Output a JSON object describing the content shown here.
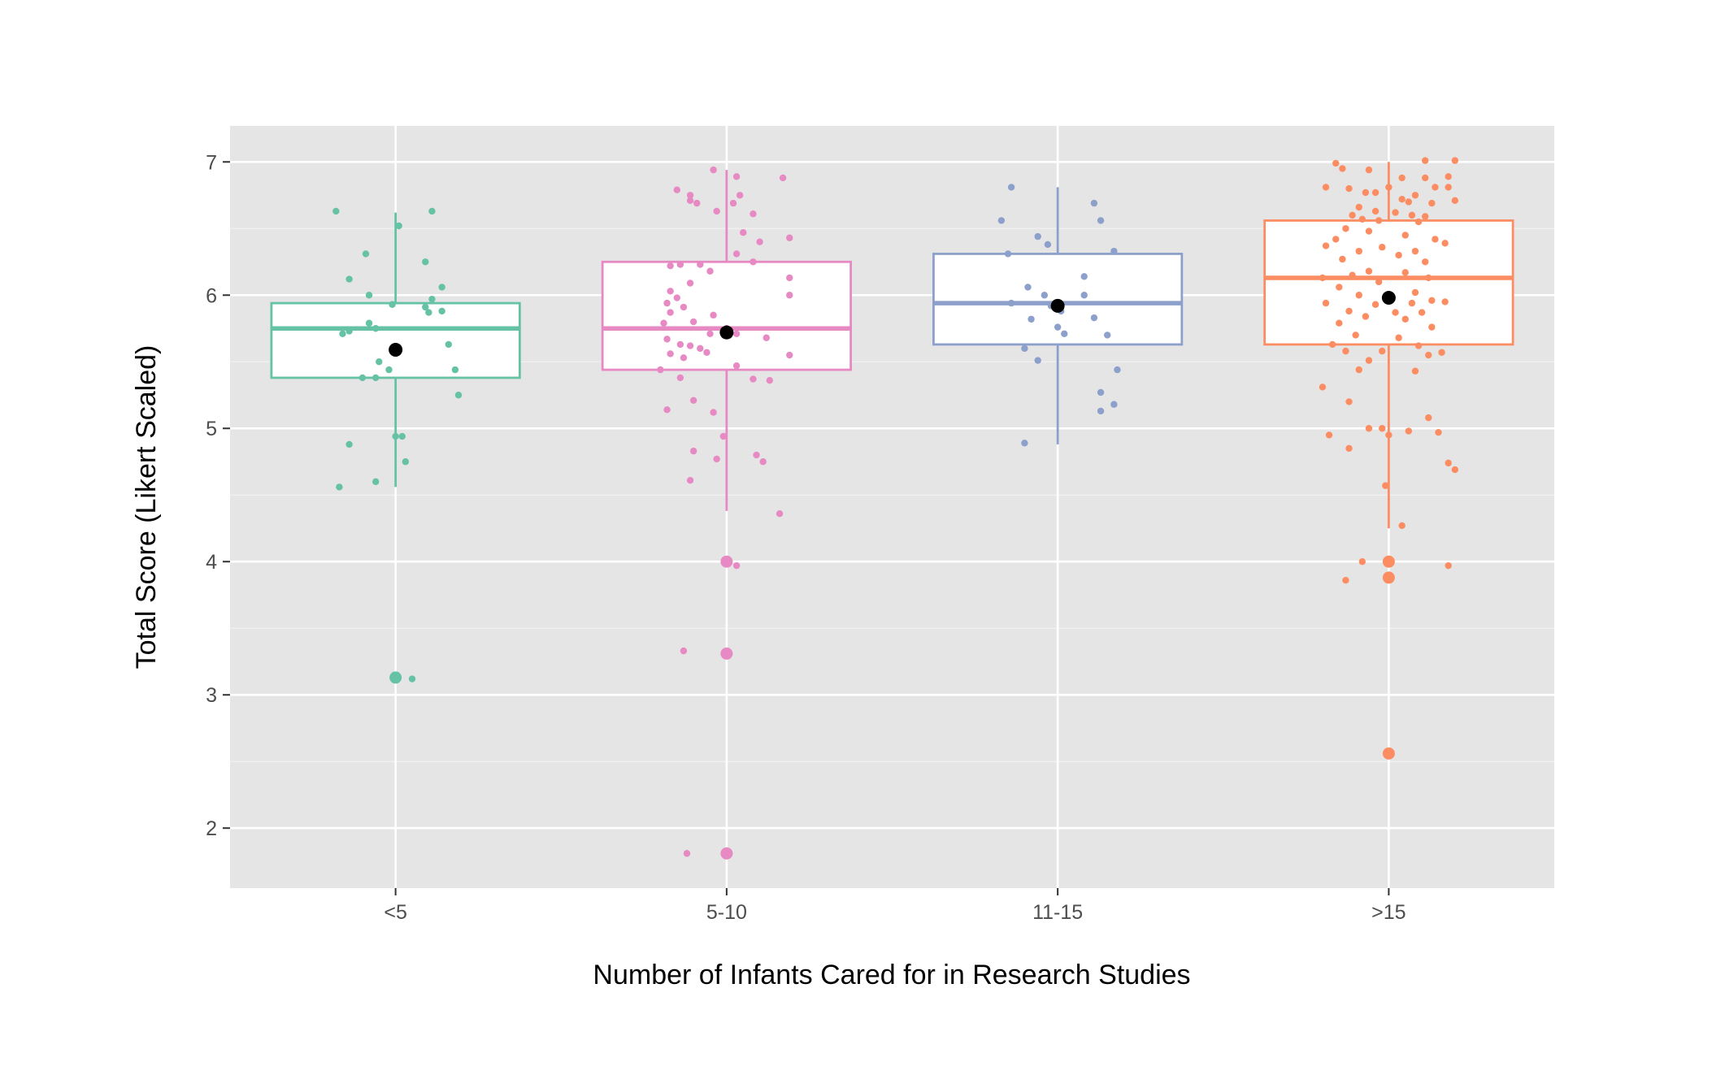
{
  "chart_data": {
    "type": "box",
    "title": "",
    "xlabel": "Number of Infants Cared for in Research Studies",
    "ylabel": "Total Score (Likert Scaled)",
    "ylim": [
      1.55,
      7.27
    ],
    "yticks": [
      2,
      3,
      4,
      5,
      6,
      7
    ],
    "grid": true,
    "legend": "none",
    "categories": [
      "<5",
      "5-10",
      "11-15",
      ">15"
    ],
    "colors": [
      "#66C2A5",
      "#E78AC3",
      "#8DA0CB",
      "#FC8D62"
    ],
    "background": "#E5E5E5",
    "boxes": [
      {
        "category": "<5",
        "q1": 5.38,
        "median": 5.75,
        "q3": 5.94,
        "whisker_low": 4.56,
        "whisker_high": 6.62,
        "mean": 5.59,
        "outliers": [
          3.13
        ]
      },
      {
        "category": "5-10",
        "q1": 5.44,
        "median": 5.75,
        "q3": 6.25,
        "whisker_low": 4.38,
        "whisker_high": 6.94,
        "mean": 5.72,
        "outliers": [
          4.0,
          3.31,
          1.81
        ]
      },
      {
        "category": "11-15",
        "q1": 5.63,
        "median": 5.94,
        "q3": 6.31,
        "whisker_low": 4.88,
        "whisker_high": 6.81,
        "mean": 5.92,
        "outliers": []
      },
      {
        "category": ">15",
        "q1": 5.63,
        "median": 6.13,
        "q3": 6.56,
        "whisker_low": 4.25,
        "whisker_high": 7.0,
        "mean": 5.98,
        "outliers": [
          4.0,
          3.88,
          2.56
        ]
      }
    ],
    "jitter_points": [
      {
        "category": "<5",
        "points": [
          [
            -0.18,
            6.63
          ],
          [
            0.11,
            6.63
          ],
          [
            0.01,
            6.52
          ],
          [
            -0.09,
            6.31
          ],
          [
            0.09,
            6.25
          ],
          [
            -0.14,
            6.12
          ],
          [
            0.14,
            6.06
          ],
          [
            -0.08,
            6.0
          ],
          [
            0.11,
            5.97
          ],
          [
            -0.01,
            5.93
          ],
          [
            0.09,
            5.91
          ],
          [
            0.14,
            5.88
          ],
          [
            0.1,
            5.87
          ],
          [
            -0.08,
            5.79
          ],
          [
            -0.06,
            5.75
          ],
          [
            -0.14,
            5.73
          ],
          [
            -0.16,
            5.71
          ],
          [
            0.16,
            5.63
          ],
          [
            -0.05,
            5.5
          ],
          [
            -0.02,
            5.44
          ],
          [
            0.18,
            5.44
          ],
          [
            -0.1,
            5.38
          ],
          [
            -0.06,
            5.38
          ],
          [
            0.19,
            5.25
          ],
          [
            0.0,
            4.94
          ],
          [
            0.02,
            4.94
          ],
          [
            -0.14,
            4.88
          ],
          [
            0.03,
            4.75
          ],
          [
            -0.06,
            4.6
          ],
          [
            -0.17,
            4.56
          ],
          [
            0.05,
            3.12
          ]
        ]
      },
      {
        "category": "5-10",
        "points": [
          [
            -0.04,
            6.94
          ],
          [
            0.03,
            6.89
          ],
          [
            0.17,
            6.88
          ],
          [
            -0.15,
            6.79
          ],
          [
            -0.11,
            6.75
          ],
          [
            0.04,
            6.75
          ],
          [
            0.02,
            6.69
          ],
          [
            -0.09,
            6.69
          ],
          [
            -0.11,
            6.71
          ],
          [
            -0.03,
            6.63
          ],
          [
            0.08,
            6.61
          ],
          [
            0.05,
            6.47
          ],
          [
            0.1,
            6.4
          ],
          [
            0.19,
            6.43
          ],
          [
            0.03,
            6.31
          ],
          [
            0.08,
            6.25
          ],
          [
            -0.14,
            6.23
          ],
          [
            -0.08,
            6.23
          ],
          [
            -0.17,
            6.22
          ],
          [
            -0.05,
            6.18
          ],
          [
            0.19,
            6.13
          ],
          [
            -0.11,
            6.09
          ],
          [
            -0.17,
            6.03
          ],
          [
            0.19,
            6.0
          ],
          [
            -0.15,
            5.98
          ],
          [
            -0.18,
            5.94
          ],
          [
            -0.13,
            5.91
          ],
          [
            -0.17,
            5.87
          ],
          [
            -0.04,
            5.85
          ],
          [
            -0.19,
            5.79
          ],
          [
            -0.1,
            5.8
          ],
          [
            0.0,
            5.75
          ],
          [
            0.12,
            5.68
          ],
          [
            -0.18,
            5.67
          ],
          [
            -0.05,
            5.71
          ],
          [
            0.03,
            5.71
          ],
          [
            -0.14,
            5.63
          ],
          [
            -0.08,
            5.6
          ],
          [
            -0.11,
            5.62
          ],
          [
            -0.17,
            5.56
          ],
          [
            0.19,
            5.55
          ],
          [
            -0.13,
            5.53
          ],
          [
            -0.06,
            5.57
          ],
          [
            0.03,
            5.47
          ],
          [
            -0.2,
            5.44
          ],
          [
            -0.14,
            5.38
          ],
          [
            0.08,
            5.37
          ],
          [
            0.13,
            5.36
          ],
          [
            -0.1,
            5.21
          ],
          [
            -0.18,
            5.14
          ],
          [
            -0.04,
            5.12
          ],
          [
            -0.01,
            4.94
          ],
          [
            -0.1,
            4.83
          ],
          [
            0.09,
            4.8
          ],
          [
            0.11,
            4.75
          ],
          [
            -0.03,
            4.77
          ],
          [
            -0.11,
            4.61
          ],
          [
            0.16,
            4.36
          ],
          [
            0.03,
            3.97
          ],
          [
            -0.13,
            3.33
          ],
          [
            -0.12,
            1.81
          ]
        ]
      },
      {
        "category": "11-15",
        "points": [
          [
            -0.14,
            6.81
          ],
          [
            0.11,
            6.69
          ],
          [
            -0.17,
            6.56
          ],
          [
            0.13,
            6.56
          ],
          [
            -0.06,
            6.44
          ],
          [
            -0.03,
            6.38
          ],
          [
            -0.15,
            6.31
          ],
          [
            0.17,
            6.33
          ],
          [
            0.08,
            6.14
          ],
          [
            -0.09,
            6.06
          ],
          [
            -0.04,
            6.0
          ],
          [
            0.08,
            6.0
          ],
          [
            -0.14,
            5.94
          ],
          [
            -0.02,
            5.92
          ],
          [
            0.01,
            5.88
          ],
          [
            -0.08,
            5.82
          ],
          [
            0.11,
            5.83
          ],
          [
            0.0,
            5.76
          ],
          [
            0.02,
            5.71
          ],
          [
            0.15,
            5.7
          ],
          [
            -0.1,
            5.6
          ],
          [
            -0.06,
            5.51
          ],
          [
            0.18,
            5.44
          ],
          [
            0.13,
            5.27
          ],
          [
            0.17,
            5.18
          ],
          [
            0.13,
            5.13
          ],
          [
            -0.1,
            4.89
          ]
        ]
      },
      {
        "category": ">15",
        "points": [
          [
            -0.16,
            6.99
          ],
          [
            -0.06,
            6.94
          ],
          [
            0.11,
            7.01
          ],
          [
            0.2,
            7.01
          ],
          [
            -0.14,
            6.95
          ],
          [
            0.11,
            6.88
          ],
          [
            0.04,
            6.88
          ],
          [
            0.18,
            6.89
          ],
          [
            -0.19,
            6.81
          ],
          [
            -0.12,
            6.8
          ],
          [
            0.0,
            6.81
          ],
          [
            0.14,
            6.81
          ],
          [
            0.18,
            6.81
          ],
          [
            -0.07,
            6.77
          ],
          [
            -0.04,
            6.77
          ],
          [
            0.08,
            6.75
          ],
          [
            0.04,
            6.72
          ],
          [
            0.06,
            6.7
          ],
          [
            0.13,
            6.69
          ],
          [
            0.2,
            6.71
          ],
          [
            -0.09,
            6.66
          ],
          [
            -0.04,
            6.63
          ],
          [
            0.02,
            6.62
          ],
          [
            -0.11,
            6.6
          ],
          [
            -0.08,
            6.57
          ],
          [
            0.07,
            6.6
          ],
          [
            0.11,
            6.59
          ],
          [
            -0.03,
            6.56
          ],
          [
            0.09,
            6.55
          ],
          [
            -0.13,
            6.5
          ],
          [
            -0.06,
            6.48
          ],
          [
            0.05,
            6.45
          ],
          [
            0.14,
            6.42
          ],
          [
            -0.16,
            6.42
          ],
          [
            -0.19,
            6.37
          ],
          [
            0.17,
            6.39
          ],
          [
            -0.09,
            6.33
          ],
          [
            -0.02,
            6.36
          ],
          [
            0.03,
            6.3
          ],
          [
            0.08,
            6.33
          ],
          [
            -0.14,
            6.27
          ],
          [
            0.11,
            6.25
          ],
          [
            -0.06,
            6.18
          ],
          [
            0.05,
            6.17
          ],
          [
            -0.2,
            6.13
          ],
          [
            -0.11,
            6.15
          ],
          [
            0.12,
            6.13
          ],
          [
            -0.03,
            6.1
          ],
          [
            -0.15,
            6.06
          ],
          [
            0.08,
            6.02
          ],
          [
            -0.09,
            6.0
          ],
          [
            0.0,
            5.98
          ],
          [
            0.13,
            5.96
          ],
          [
            -0.19,
            5.94
          ],
          [
            -0.04,
            5.93
          ],
          [
            0.07,
            5.94
          ],
          [
            0.17,
            5.95
          ],
          [
            -0.12,
            5.88
          ],
          [
            0.02,
            5.87
          ],
          [
            0.1,
            5.87
          ],
          [
            -0.07,
            5.84
          ],
          [
            0.05,
            5.82
          ],
          [
            -0.15,
            5.79
          ],
          [
            0.13,
            5.76
          ],
          [
            -0.1,
            5.7
          ],
          [
            0.03,
            5.68
          ],
          [
            -0.17,
            5.63
          ],
          [
            0.09,
            5.62
          ],
          [
            -0.02,
            5.58
          ],
          [
            -0.13,
            5.58
          ],
          [
            0.16,
            5.57
          ],
          [
            0.12,
            5.55
          ],
          [
            -0.06,
            5.51
          ],
          [
            -0.09,
            5.44
          ],
          [
            0.08,
            5.43
          ],
          [
            -0.2,
            5.31
          ],
          [
            -0.12,
            5.2
          ],
          [
            0.12,
            5.08
          ],
          [
            -0.06,
            5.0
          ],
          [
            -0.02,
            5.0
          ],
          [
            0.06,
            4.98
          ],
          [
            0.15,
            4.97
          ],
          [
            -0.18,
            4.95
          ],
          [
            0.0,
            4.95
          ],
          [
            -0.12,
            4.85
          ],
          [
            0.18,
            4.74
          ],
          [
            0.2,
            4.69
          ],
          [
            -0.01,
            4.57
          ],
          [
            0.04,
            4.27
          ],
          [
            -0.08,
            4.0
          ],
          [
            0.18,
            3.97
          ],
          [
            -0.13,
            3.86
          ],
          [
            0.0,
            2.56
          ]
        ]
      }
    ]
  }
}
